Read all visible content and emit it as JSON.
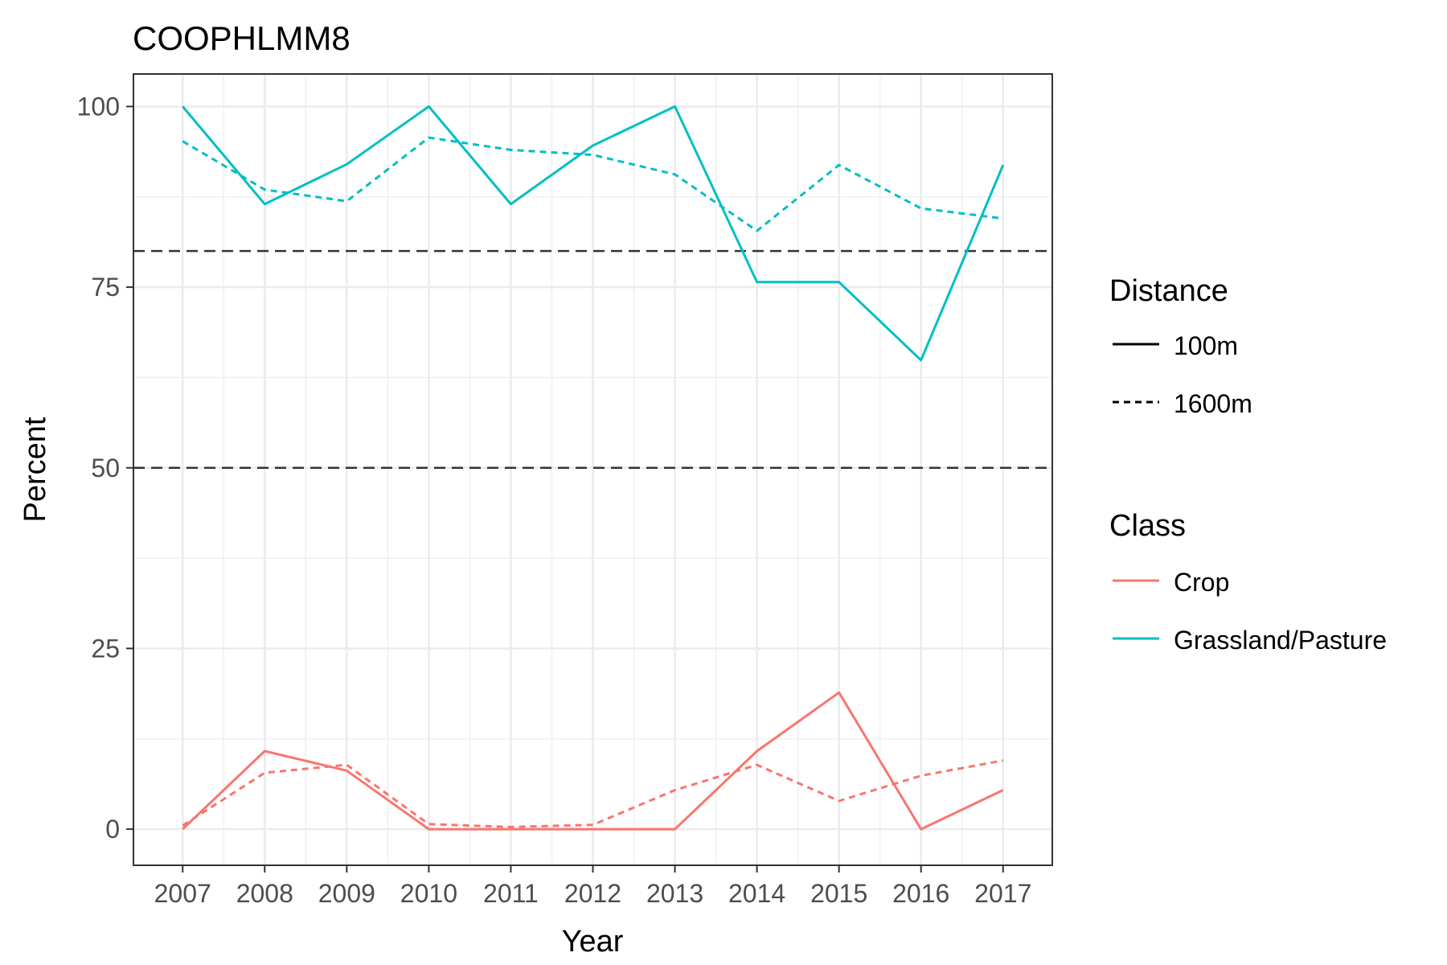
{
  "chart_data": {
    "type": "line",
    "title": "COOPHLMM8",
    "xlabel": "Year",
    "ylabel": "Percent",
    "x": [
      "2007",
      "2008",
      "2009",
      "2010",
      "2011",
      "2012",
      "2013",
      "2014",
      "2015",
      "2016",
      "2017"
    ],
    "ylim": [
      -5,
      104.5
    ],
    "yticks": [
      0,
      25,
      50,
      75,
      100
    ],
    "grid": true,
    "reference_lines": [
      50,
      80
    ],
    "series": [
      {
        "class": "Grassland/Pasture",
        "distance": "100m",
        "values": [
          100,
          86.5,
          92,
          100,
          86.5,
          94.6,
          100,
          75.7,
          75.7,
          64.9,
          91.9
        ]
      },
      {
        "class": "Grassland/Pasture",
        "distance": "1600m",
        "values": [
          95.2,
          88.5,
          86.9,
          95.7,
          94,
          93.3,
          90.6,
          82.8,
          91.9,
          85.9,
          84.5
        ]
      },
      {
        "class": "Crop",
        "distance": "100m",
        "values": [
          0,
          10.8,
          8.1,
          0,
          0,
          0,
          0,
          10.8,
          18.9,
          0,
          5.4
        ]
      },
      {
        "class": "Crop",
        "distance": "1600m",
        "values": [
          0.5,
          7.8,
          8.9,
          0.7,
          0.3,
          0.6,
          5.4,
          8.9,
          3.9,
          7.4,
          9.5
        ]
      }
    ],
    "legend": {
      "placement": "right",
      "distance_title": "Distance",
      "distance_items": [
        {
          "label": "100m",
          "style": "solid"
        },
        {
          "label": "1600m",
          "style": "dashed"
        }
      ],
      "class_title": "Class",
      "class_items": [
        {
          "label": "Crop",
          "color": "#F8766D"
        },
        {
          "label": "Grassland/Pasture",
          "color": "#00BFC4"
        }
      ]
    }
  }
}
